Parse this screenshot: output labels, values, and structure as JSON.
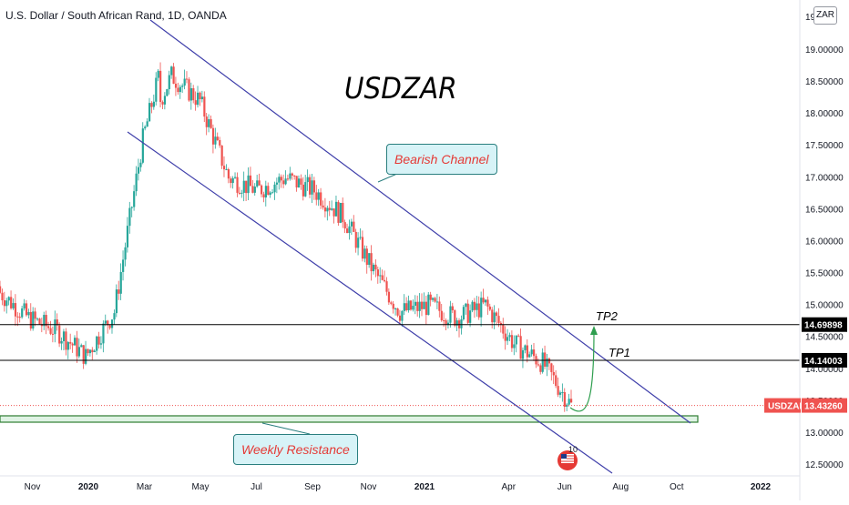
{
  "header": {
    "symbol_title": "U.S. Dollar / South African Rand, 1D, OANDA",
    "currency_badge": "ZAR"
  },
  "annotations": {
    "main_label": "USDZAR",
    "bearish_channel": "Bearish Channel",
    "weekly_resistance": "Weekly Resistance",
    "tp1": "TP1",
    "tp2": "TP2",
    "event_count": "10"
  },
  "colors": {
    "up_candle": "#26a69a",
    "down_candle": "#ef5350",
    "channel_line": "#3f3faa",
    "level_line": "#000000",
    "price_tag": "#ef5350",
    "level_tag": "#000000",
    "resistance_zone_fill": "#dff3e4",
    "resistance_zone_border": "#2e7d32",
    "projection_arrow": "#2e9e4e",
    "callout_fill": "#d7f3f7",
    "callout_text": "#e53935"
  },
  "chart_data": {
    "type": "candlestick",
    "ylim": [
      12.4,
      19.5
    ],
    "y_ticks": [
      "19.00000",
      "18.50000",
      "18.00000",
      "17.50000",
      "17.00000",
      "16.50000",
      "16.00000",
      "15.50000",
      "15.00000",
      "14.50000",
      "14.00000",
      "13.50000",
      "13.00000",
      "12.50000"
    ],
    "y_top_partial": "19.5",
    "x_ticks": [
      "Nov",
      "2020",
      "Mar",
      "May",
      "Jul",
      "Sep",
      "Nov",
      "2021",
      "Apr",
      "Jun",
      "Aug",
      "Oct",
      "2022"
    ],
    "current_price": {
      "label": "USDZAR",
      "value": "13.43260"
    },
    "horizontal_levels": [
      {
        "name": "TP2",
        "value": "14.69898"
      },
      {
        "name": "TP1",
        "value": "14.14003"
      }
    ],
    "resistance_zone": {
      "name": "Weekly Resistance",
      "low": 13.17,
      "high": 13.25
    },
    "channel": {
      "upper": {
        "from": [
          "Feb 2020",
          19.45
        ],
        "to": [
          "Oct 2021",
          13.2
        ]
      },
      "lower": {
        "from": [
          "Feb 2020",
          17.85
        ],
        "to": [
          "Aug 2021",
          12.45
        ]
      }
    },
    "series": [
      {
        "x": [
          "Oct 2019",
          "Nov 2019",
          "Dec 2019",
          "Jan 2020",
          "Feb 2020",
          "Mar 2020",
          "Apr 2020",
          "May 2020",
          "Jun 2020",
          "Jul 2020",
          "Aug 2020",
          "Sep 2020",
          "Oct 2020",
          "Nov 2020",
          "Dec 2020",
          "Jan 2021",
          "Feb 2021",
          "Mar 2021",
          "Apr 2021",
          "May 2021",
          "Jun 2021"
        ],
        "close": [
          15.2,
          14.8,
          14.6,
          14.2,
          14.9,
          17.6,
          18.6,
          18.2,
          17.0,
          16.8,
          17.0,
          16.8,
          16.4,
          15.6,
          14.9,
          15.0,
          14.8,
          15.0,
          14.4,
          14.1,
          13.43
        ]
      }
    ]
  }
}
